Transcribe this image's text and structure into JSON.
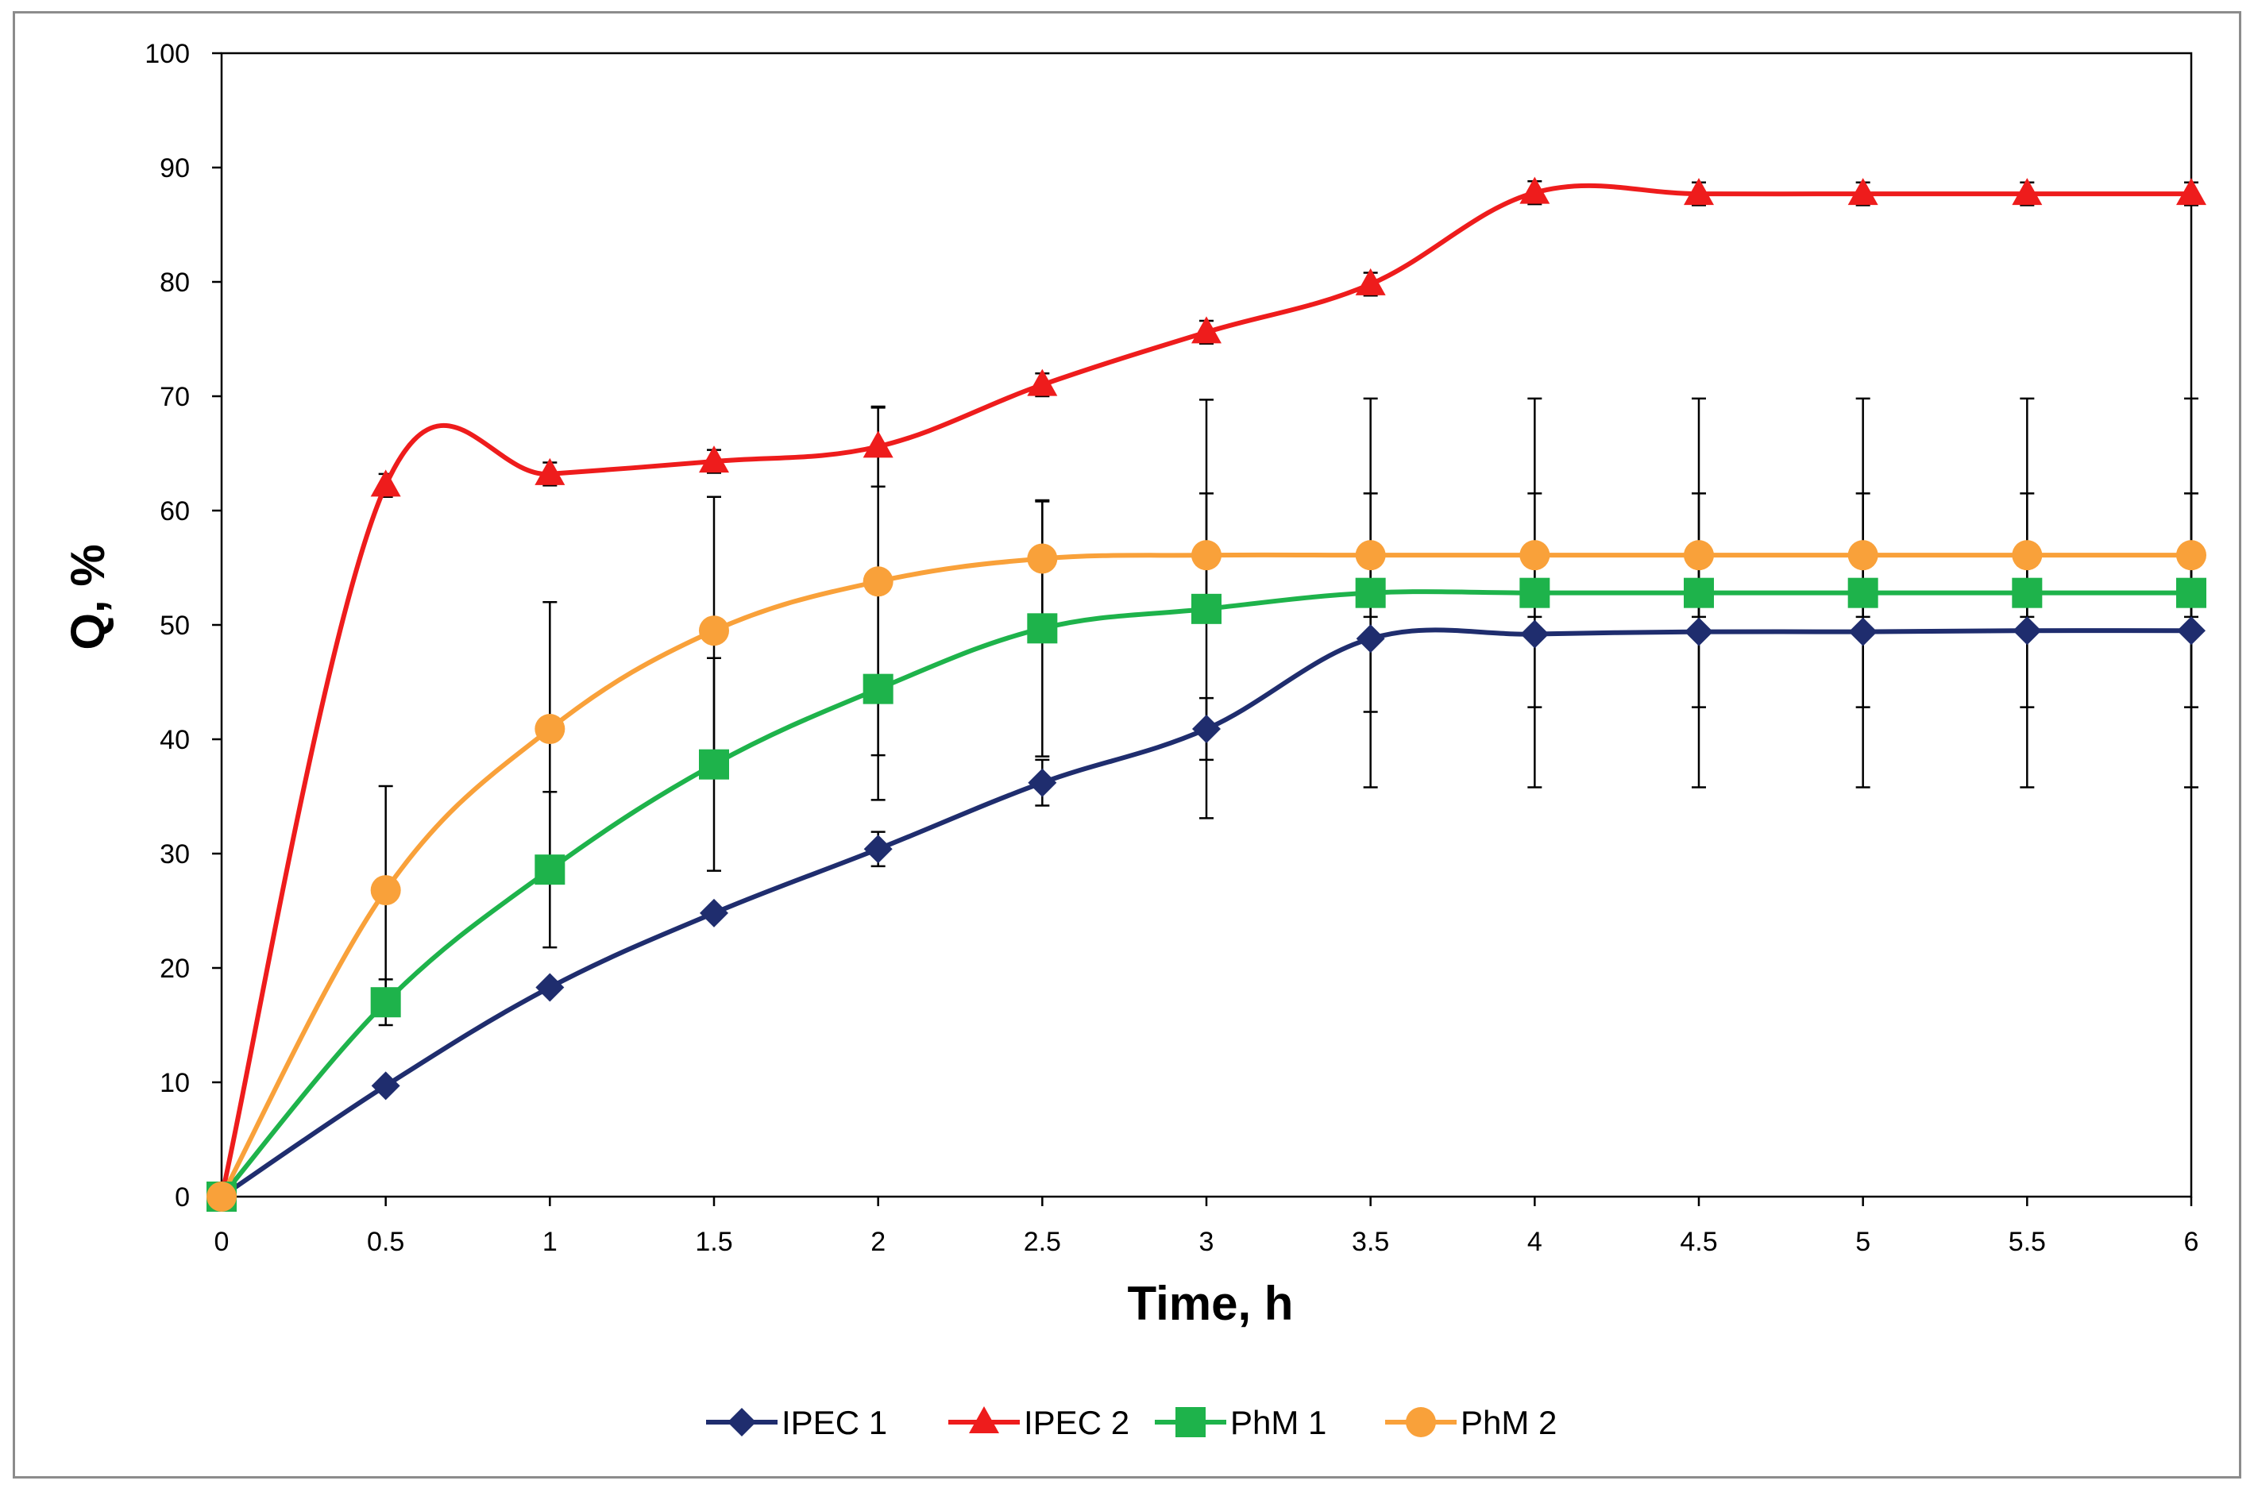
{
  "chart_data": {
    "type": "line",
    "xlabel": "Time, h",
    "ylabel": "Q, %",
    "xlim": [
      0,
      6
    ],
    "ylim": [
      0,
      100
    ],
    "x_ticks": [
      "0",
      "0.5",
      "1",
      "1.5",
      "2",
      "2.5",
      "3",
      "3.5",
      "4",
      "4.5",
      "5",
      "5.5",
      "6"
    ],
    "y_ticks": [
      "0",
      "10",
      "20",
      "30",
      "40",
      "50",
      "60",
      "70",
      "80",
      "90",
      "100"
    ],
    "grid": false,
    "smooth": true,
    "legend_position": "bottom",
    "x": [
      0,
      0.5,
      1,
      1.5,
      2,
      2.5,
      3,
      3.5,
      4,
      4.5,
      5,
      5.5,
      6
    ],
    "series": [
      {
        "name": "IPEC 1",
        "color": "#1f2d6e",
        "marker": "diamond",
        "values": [
          0,
          9.7,
          18.3,
          24.8,
          30.4,
          36.2,
          40.9,
          48.8,
          49.2,
          49.4,
          49.4,
          49.5,
          49.5
        ],
        "error": [
          0,
          0,
          0,
          0,
          1.5,
          2,
          2.7,
          6.4,
          6.4,
          6.6,
          6.6,
          6.7,
          6.7
        ]
      },
      {
        "name": "IPEC 2",
        "color": "#ee1c1c",
        "marker": "triangle",
        "values": [
          0,
          62.2,
          63.2,
          64.3,
          65.6,
          71.0,
          75.6,
          79.8,
          87.8,
          87.7,
          87.7,
          87.7,
          87.7
        ],
        "error": [
          0,
          1,
          1,
          1,
          3.5,
          1,
          1,
          1,
          1,
          1,
          1,
          1,
          1
        ]
      },
      {
        "name": "PhM 1",
        "color": "#1eb34b",
        "marker": "square",
        "values": [
          0,
          17.0,
          28.6,
          37.8,
          44.4,
          49.7,
          51.4,
          52.8,
          52.8,
          52.8,
          52.8,
          52.8,
          52.8
        ],
        "error": [
          0,
          2,
          6.8,
          9.3,
          9.7,
          11.2,
          18.3,
          17,
          17,
          17,
          17,
          17,
          17
        ]
      },
      {
        "name": "PhM 2",
        "color": "#f9a13a",
        "marker": "circle",
        "values": [
          0,
          26.8,
          40.9,
          49.5,
          53.8,
          55.8,
          56.1,
          56.1,
          56.1,
          56.1,
          56.1,
          56.1,
          56.1
        ],
        "error": [
          0,
          9.1,
          11.1,
          11.7,
          15.2,
          5,
          5.4,
          5.4,
          5.4,
          5.4,
          5.4,
          5.4,
          5.4
        ]
      }
    ]
  }
}
